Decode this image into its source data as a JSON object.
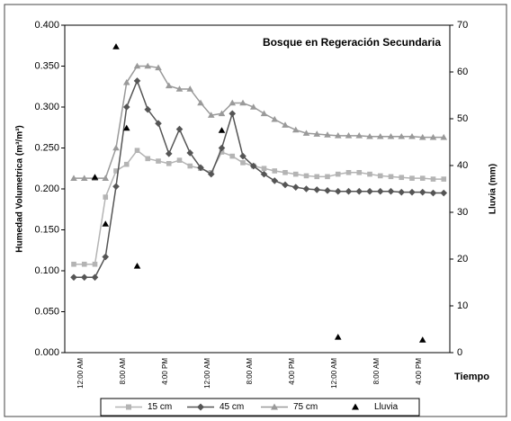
{
  "chart_data": {
    "type": "line",
    "title": "Bosque en Regeración Secundaria",
    "y_label": "Humedad Volumetrica (m³/m³)",
    "y2_label": "Lluvia (mm)",
    "x_label": "Tiempo",
    "categories": [
      null,
      "12:00 AM",
      null,
      null,
      null,
      "8:00 AM",
      null,
      null,
      null,
      "4:00 PM",
      null,
      null,
      null,
      "12:00 AM",
      null,
      null,
      null,
      "8:00 AM",
      null,
      null,
      null,
      "4:00 PM",
      null,
      null,
      null,
      "12:00 AM",
      null,
      null,
      null,
      "8:00 AM",
      null,
      null,
      null,
      "4:00 PM",
      null,
      null
    ],
    "ylim": [
      0,
      0.4
    ],
    "yticks": [
      {
        "value": 0,
        "label": "0.000"
      },
      {
        "value": 0.05,
        "label": "0.050"
      },
      {
        "value": 0.1,
        "label": "0.100"
      },
      {
        "value": 0.15,
        "label": "0.150"
      },
      {
        "value": 0.2,
        "label": "0.200"
      },
      {
        "value": 0.25,
        "label": "0.250"
      },
      {
        "value": 0.3,
        "label": "0.300"
      },
      {
        "value": 0.35,
        "label": "0.350"
      },
      {
        "value": 0.4,
        "label": "0.400"
      }
    ],
    "y2lim": [
      0,
      70
    ],
    "y2ticks": [
      0,
      10,
      20,
      30,
      40,
      50,
      60,
      70
    ],
    "grid": false,
    "legend": "bottom",
    "series": [
      {
        "name": "15 cm",
        "color": "#b4b4b4",
        "marker": "square",
        "line": true,
        "values": [
          0.108,
          0.108,
          0.108,
          0.19,
          0.222,
          0.23,
          0.247,
          0.237,
          0.234,
          0.231,
          0.235,
          0.228,
          0.225,
          0.22,
          0.245,
          0.24,
          0.232,
          0.228,
          0.225,
          0.222,
          0.22,
          0.218,
          0.216,
          0.215,
          0.215,
          0.218,
          0.22,
          0.22,
          0.218,
          0.216,
          0.215,
          0.214,
          0.213,
          0.213,
          0.212,
          0.212
        ]
      },
      {
        "name": "45 cm",
        "color": "#555555",
        "marker": "diamond",
        "line": true,
        "values": [
          0.092,
          0.092,
          0.092,
          0.117,
          0.203,
          0.3,
          0.332,
          0.297,
          0.28,
          0.243,
          0.273,
          0.244,
          0.226,
          0.218,
          0.25,
          0.292,
          0.24,
          0.228,
          0.218,
          0.21,
          0.205,
          0.202,
          0.2,
          0.199,
          0.198,
          0.197,
          0.197,
          0.197,
          0.197,
          0.197,
          0.197,
          0.196,
          0.196,
          0.196,
          0.195,
          0.195
        ]
      },
      {
        "name": "75 cm",
        "color": "#9a9a9a",
        "marker": "triangle",
        "line": true,
        "values": [
          0.213,
          0.213,
          0.213,
          0.213,
          0.25,
          0.33,
          0.35,
          0.35,
          0.348,
          0.326,
          0.322,
          0.322,
          0.305,
          0.29,
          0.292,
          0.305,
          0.305,
          0.3,
          0.292,
          0.285,
          0.278,
          0.272,
          0.268,
          0.267,
          0.266,
          0.265,
          0.265,
          0.265,
          0.264,
          0.264,
          0.264,
          0.264,
          0.264,
          0.263,
          0.263,
          0.263
        ]
      },
      {
        "name": "Lluvia",
        "color": "#000000",
        "marker": "triangle",
        "line": false,
        "axis": "y2",
        "values": [
          null,
          null,
          37.5,
          27.5,
          65.4,
          48,
          18.5,
          null,
          null,
          null,
          null,
          null,
          null,
          null,
          47.5,
          null,
          null,
          null,
          null,
          null,
          null,
          null,
          null,
          null,
          null,
          3.3,
          null,
          null,
          null,
          null,
          null,
          null,
          null,
          2.7,
          null,
          null
        ]
      }
    ]
  }
}
